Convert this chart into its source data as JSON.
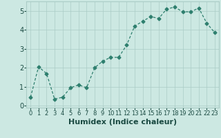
{
  "x": [
    0,
    1,
    2,
    3,
    4,
    5,
    6,
    7,
    8,
    9,
    10,
    11,
    12,
    13,
    14,
    15,
    16,
    17,
    18,
    19,
    20,
    21,
    22,
    23
  ],
  "y": [
    0.45,
    2.05,
    1.7,
    0.35,
    0.45,
    0.95,
    1.1,
    0.95,
    2.0,
    2.35,
    2.55,
    2.55,
    3.2,
    4.2,
    4.45,
    4.7,
    4.6,
    5.1,
    5.2,
    4.95,
    4.95,
    5.15,
    4.35,
    3.85
  ],
  "xlabel": "Humidex (Indice chaleur)",
  "xlim": [
    -0.5,
    23.5
  ],
  "ylim": [
    -0.1,
    5.5
  ],
  "yticks": [
    0,
    1,
    2,
    3,
    4,
    5
  ],
  "xticks": [
    0,
    1,
    2,
    3,
    4,
    5,
    6,
    7,
    8,
    9,
    10,
    11,
    12,
    13,
    14,
    15,
    16,
    17,
    18,
    19,
    20,
    21,
    22,
    23
  ],
  "line_color": "#2e7f6e",
  "marker": "D",
  "marker_size": 2.5,
  "bg_color": "#cce8e2",
  "grid_color": "#aaccc6",
  "xlabel_fontsize": 8,
  "ytick_fontsize": 7,
  "xtick_fontsize": 6
}
